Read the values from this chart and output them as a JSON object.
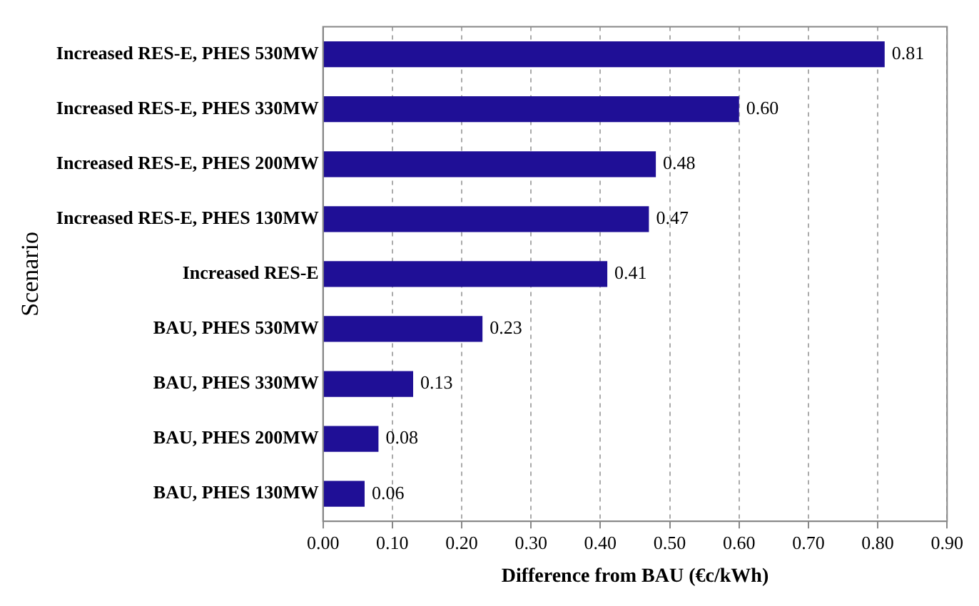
{
  "chart_data": {
    "type": "bar",
    "orientation": "horizontal",
    "xlabel": "Difference from BAU (€c/kWh)",
    "ylabel": "Scenario",
    "categories": [
      "Increased RES-E, PHES 530MW",
      "Increased RES-E, PHES 330MW",
      "Increased RES-E, PHES 200MW",
      "Increased RES-E, PHES 130MW",
      "Increased RES-E",
      "BAU, PHES 530MW",
      "BAU, PHES 330MW",
      "BAU, PHES 200MW",
      "BAU, PHES 130MW"
    ],
    "values": [
      0.81,
      0.6,
      0.48,
      0.47,
      0.41,
      0.23,
      0.13,
      0.08,
      0.06
    ],
    "value_labels": [
      "0.81",
      "0.60",
      "0.48",
      "0.47",
      "0.41",
      "0.23",
      "0.13",
      "0.08",
      "0.06"
    ],
    "color": "#1f0f96",
    "xlim": [
      0,
      0.9
    ],
    "xticks": [
      {
        "value": 0,
        "label": "0.00"
      },
      {
        "value": 0.1,
        "label": "0.10"
      },
      {
        "value": 0.2,
        "label": "0.20"
      },
      {
        "value": 0.3,
        "label": "0.30"
      },
      {
        "value": 0.4,
        "label": "0.40"
      },
      {
        "value": 0.5,
        "label": "0.50"
      },
      {
        "value": 0.6,
        "label": "0.60"
      },
      {
        "value": 0.7,
        "label": "0.70"
      },
      {
        "value": 0.8,
        "label": "0.80"
      },
      {
        "value": 0.9,
        "label": "0.90"
      }
    ],
    "grid": "x",
    "legend": false
  }
}
